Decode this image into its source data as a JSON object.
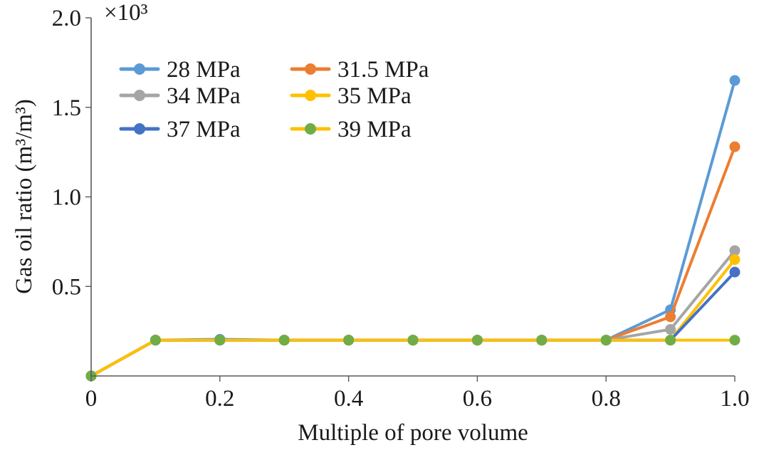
{
  "chart_data": {
    "type": "line",
    "title": "",
    "xlabel": "Multiple of pore volume",
    "ylabel": "Gas oil ratio (m³/m³)",
    "y_multiplier": "×10³",
    "xlim": [
      0,
      1.0
    ],
    "ylim": [
      0,
      2.0
    ],
    "x": [
      0,
      0.1,
      0.2,
      0.3,
      0.4,
      0.5,
      0.6,
      0.7,
      0.8,
      0.9,
      1.0
    ],
    "x_ticks": [
      {
        "value": 0,
        "label": "0"
      },
      {
        "value": 0.2,
        "label": "0.2"
      },
      {
        "value": 0.4,
        "label": "0.4"
      },
      {
        "value": 0.6,
        "label": "0.6"
      },
      {
        "value": 0.8,
        "label": "0.8"
      },
      {
        "value": 1.0,
        "label": "1.0"
      }
    ],
    "y_ticks": [
      {
        "value": 0.5,
        "label": "0.5"
      },
      {
        "value": 1.0,
        "label": "1.0"
      },
      {
        "value": 1.5,
        "label": "1.5"
      },
      {
        "value": 2.0,
        "label": "2.0"
      }
    ],
    "grid": false,
    "legend_position": "top-left",
    "series": [
      {
        "name": "28 MPa",
        "color": "#5b9bd5",
        "values": [
          0,
          0.2,
          0.205,
          0.2,
          0.2,
          0.2,
          0.2,
          0.2,
          0.2,
          0.37,
          1.65
        ]
      },
      {
        "name": "31.5 MPa",
        "color": "#ed7d31",
        "values": [
          0,
          0.2,
          0.2,
          0.2,
          0.2,
          0.2,
          0.2,
          0.2,
          0.2,
          0.33,
          1.28
        ]
      },
      {
        "name": "34 MPa",
        "color": "#a5a5a5",
        "values": [
          0,
          0.2,
          0.2,
          0.2,
          0.2,
          0.2,
          0.2,
          0.2,
          0.2,
          0.26,
          0.7
        ]
      },
      {
        "name": "35 MPa",
        "color": "#ffc000",
        "values": [
          0,
          0.2,
          0.2,
          0.2,
          0.2,
          0.2,
          0.2,
          0.2,
          0.2,
          0.2,
          0.65
        ]
      },
      {
        "name": "37 MPa",
        "color": "#4472c4",
        "values": [
          0,
          0.2,
          0.2,
          0.2,
          0.2,
          0.2,
          0.2,
          0.2,
          0.2,
          0.2,
          0.58
        ]
      },
      {
        "name": "39 MPa",
        "color": "#70ad47",
        "line_color": "#ffc000",
        "values": [
          0,
          0.2,
          0.2,
          0.2,
          0.2,
          0.2,
          0.2,
          0.2,
          0.2,
          0.2,
          0.2
        ]
      }
    ]
  }
}
